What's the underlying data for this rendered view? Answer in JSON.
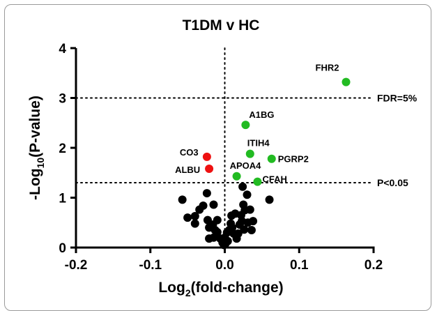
{
  "chart_data": {
    "type": "scatter",
    "title": "T1DM v HC",
    "xlabel": {
      "prefix": "Log",
      "subscript": "2",
      "suffix": "(fold-change)"
    },
    "ylabel": {
      "prefix": "-Log",
      "subscript": "10",
      "suffix": "(P-value)"
    },
    "xlim": [
      -0.2,
      0.2
    ],
    "ylim": [
      0,
      4
    ],
    "x_ticks": [
      "-0.2",
      "-0.1",
      "0.0",
      "0.1",
      "0.2"
    ],
    "y_ticks": [
      "0",
      "1",
      "2",
      "3",
      "4"
    ],
    "grid": false,
    "reference_lines": [
      {
        "orientation": "horizontal",
        "value": 3.0,
        "label": "FDR=5%"
      },
      {
        "orientation": "horizontal",
        "value": 1.3,
        "label": "P<0.05"
      },
      {
        "orientation": "vertical",
        "value": 0.0,
        "label": ""
      }
    ],
    "colors": {
      "up": "#22bb22",
      "down": "#ee1111",
      "ns": "#000000"
    },
    "labeled_points": [
      {
        "label": "FHR2",
        "x": 0.163,
        "y": 3.32,
        "group": "up"
      },
      {
        "label": "A1BG",
        "x": 0.028,
        "y": 2.46,
        "group": "up"
      },
      {
        "label": "ITIH4",
        "x": 0.034,
        "y": 1.88,
        "group": "up"
      },
      {
        "label": "PGRP2",
        "x": 0.063,
        "y": 1.78,
        "group": "up"
      },
      {
        "label": "APOA4",
        "x": 0.016,
        "y": 1.43,
        "group": "up"
      },
      {
        "label": "CFAH",
        "x": 0.044,
        "y": 1.32,
        "group": "up"
      },
      {
        "label": "CO3",
        "x": -0.024,
        "y": 1.82,
        "group": "down"
      },
      {
        "label": "ALBU",
        "x": -0.021,
        "y": 1.58,
        "group": "down"
      }
    ],
    "points": [
      {
        "x": -0.057,
        "y": 0.96
      },
      {
        "x": -0.05,
        "y": 0.6
      },
      {
        "x": -0.04,
        "y": 0.63
      },
      {
        "x": -0.034,
        "y": 0.76
      },
      {
        "x": -0.04,
        "y": 0.48
      },
      {
        "x": -0.029,
        "y": 0.84
      },
      {
        "x": -0.024,
        "y": 1.09
      },
      {
        "x": -0.015,
        "y": 0.86
      },
      {
        "x": -0.023,
        "y": 0.55
      },
      {
        "x": -0.016,
        "y": 0.46
      },
      {
        "x": -0.01,
        "y": 0.55
      },
      {
        "x": -0.021,
        "y": 0.4
      },
      {
        "x": -0.013,
        "y": 0.35
      },
      {
        "x": -0.021,
        "y": 0.18
      },
      {
        "x": -0.015,
        "y": 0.2
      },
      {
        "x": -0.01,
        "y": 0.31
      },
      {
        "x": -0.006,
        "y": 0.18
      },
      {
        "x": -0.003,
        "y": 0.1
      },
      {
        "x": -0.001,
        "y": 0.05
      },
      {
        "x": 0.0,
        "y": 0.2
      },
      {
        "x": 0.003,
        "y": 0.3
      },
      {
        "x": 0.006,
        "y": 0.35
      },
      {
        "x": 0.008,
        "y": 0.48
      },
      {
        "x": 0.01,
        "y": 0.4
      },
      {
        "x": 0.009,
        "y": 0.64
      },
      {
        "x": 0.014,
        "y": 0.68
      },
      {
        "x": 0.012,
        "y": 0.28
      },
      {
        "x": 0.016,
        "y": 0.18
      },
      {
        "x": 0.018,
        "y": 0.28
      },
      {
        "x": 0.02,
        "y": 0.46
      },
      {
        "x": 0.022,
        "y": 0.65
      },
      {
        "x": 0.025,
        "y": 0.86
      },
      {
        "x": 0.027,
        "y": 0.75
      },
      {
        "x": 0.023,
        "y": 0.53
      },
      {
        "x": 0.026,
        "y": 0.36
      },
      {
        "x": 0.03,
        "y": 1.06
      },
      {
        "x": 0.031,
        "y": 0.5
      },
      {
        "x": 0.034,
        "y": 0.76
      },
      {
        "x": 0.036,
        "y": 0.35
      },
      {
        "x": 0.038,
        "y": 0.53
      },
      {
        "x": 0.024,
        "y": 1.22
      },
      {
        "x": 0.06,
        "y": 0.96
      },
      {
        "x": 0.004,
        "y": 0.13
      },
      {
        "x": 0.001,
        "y": 0.08
      }
    ]
  }
}
